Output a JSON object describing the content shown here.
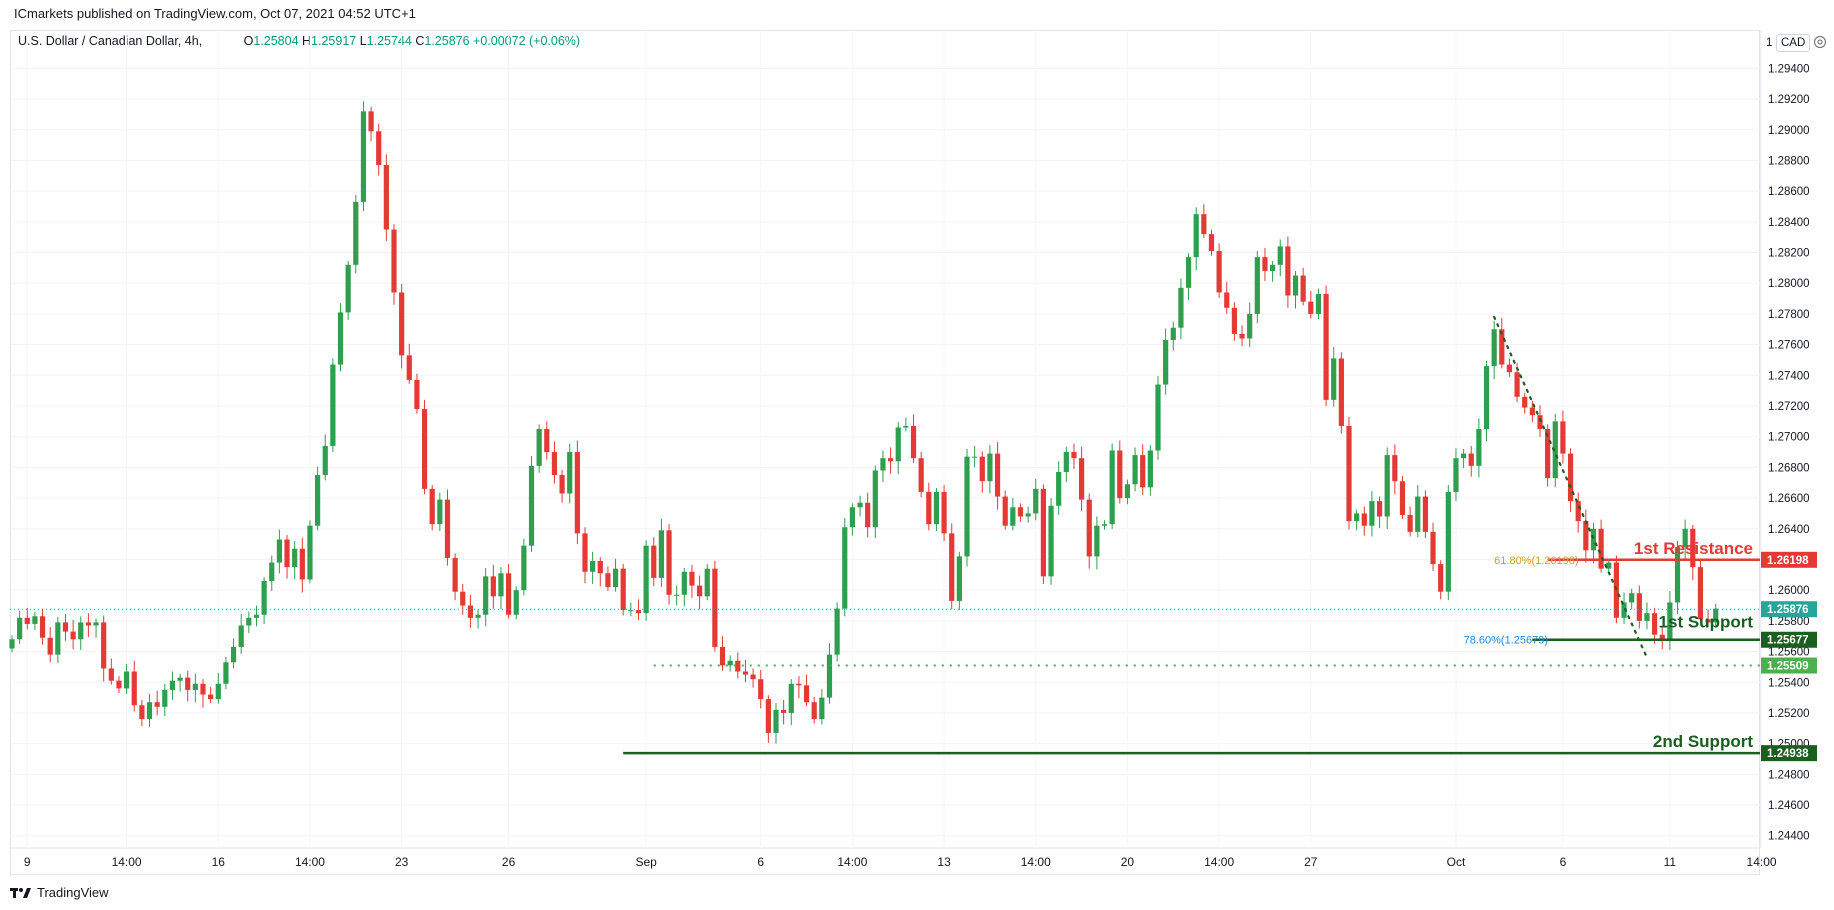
{
  "header": {
    "publisher": "ICmarkets published on TradingView.com, Oct 07, 2021 04:52 UTC+1"
  },
  "legend": {
    "symbol": "U.S. Dollar / Canadian Dollar, 4h,",
    "o_key": "O",
    "o": "1.25804",
    "h_key": "H",
    "h": "1.25917",
    "l_key": "L",
    "l": "1.25744",
    "c_key": "C",
    "c": "1.25876",
    "change": "+0.00072 (+0.06%)"
  },
  "currency": {
    "prefix": "1",
    "code": "CAD"
  },
  "footer": {
    "brand": "TradingView",
    "logo_icon": "tradingview-logo-icon"
  },
  "colors": {
    "up": "#26a69a",
    "up_candle": "#2e9e4f",
    "down": "#e53935",
    "resistance": "#e53935",
    "support": "#1b5e20",
    "support_light": "#4caf50",
    "fib_label": "#1e88e5",
    "fib_label_gold": "#c9a227"
  },
  "chart_data": {
    "type": "candlestick",
    "timeframe": "4h",
    "ylim": [
      1.2432,
      1.2965
    ],
    "y_ticks": [
      "1.29400",
      "1.29200",
      "1.29000",
      "1.28800",
      "1.28600",
      "1.28400",
      "1.28200",
      "1.28000",
      "1.27800",
      "1.27600",
      "1.27400",
      "1.27200",
      "1.27000",
      "1.26800",
      "1.26600",
      "1.26400",
      "1.26200",
      "1.26000",
      "1.25800",
      "1.25600",
      "1.25400",
      "1.25200",
      "1.25000",
      "1.24800",
      "1.24600",
      "1.24400"
    ],
    "x_ticks": [
      {
        "label": "9",
        "i": 2
      },
      {
        "label": "14:00",
        "i": 15
      },
      {
        "label": "16",
        "i": 27
      },
      {
        "label": "14:00",
        "i": 39
      },
      {
        "label": "23",
        "i": 51
      },
      {
        "label": "26",
        "i": 65
      },
      {
        "label": "Sep",
        "i": 83
      },
      {
        "label": "6",
        "i": 98
      },
      {
        "label": "14:00",
        "i": 110
      },
      {
        "label": "13",
        "i": 122
      },
      {
        "label": "14:00",
        "i": 134
      },
      {
        "label": "20",
        "i": 146
      },
      {
        "label": "14:00",
        "i": 158
      },
      {
        "label": "27",
        "i": 170
      },
      {
        "label": "Oct",
        "i": 189
      },
      {
        "label": "6",
        "i": 203
      },
      {
        "label": "11",
        "i": 217
      },
      {
        "label": "14:00",
        "i": 229
      }
    ],
    "closes": [
      1.2568,
      1.2582,
      1.2578,
      1.2583,
      1.2569,
      1.2558,
      1.2579,
      1.2573,
      1.2568,
      1.2579,
      1.2577,
      1.2579,
      1.2549,
      1.2541,
      1.2536,
      1.2547,
      1.2525,
      1.2516,
      1.2527,
      1.2524,
      1.2535,
      1.2541,
      1.2543,
      1.2535,
      1.2539,
      1.2532,
      1.2529,
      1.2539,
      1.2553,
      1.2563,
      1.2577,
      1.2582,
      1.2584,
      1.2606,
      1.2618,
      1.2633,
      1.2615,
      1.2627,
      1.2607,
      1.2642,
      1.2675,
      1.2694,
      1.2747,
      1.2781,
      1.2812,
      1.2853,
      1.2912,
      1.2899,
      1.2877,
      1.2835,
      1.2794,
      1.2753,
      1.2737,
      1.2718,
      1.2666,
      1.2643,
      1.2659,
      1.2621,
      1.2599,
      1.259,
      1.2582,
      1.2584,
      1.2609,
      1.2596,
      1.2611,
      1.2584,
      1.26,
      1.2629,
      1.2681,
      1.2705,
      1.269,
      1.2675,
      1.2663,
      1.269,
      1.2637,
      1.2612,
      1.2619,
      1.2611,
      1.2602,
      1.2614,
      1.2587,
      1.2587,
      1.2585,
      1.2629,
      1.2608,
      1.2639,
      1.2597,
      1.2597,
      1.2612,
      1.2603,
      1.2596,
      1.2614,
      1.2563,
      1.2551,
      1.2554,
      1.2547,
      1.2545,
      1.2542,
      1.2529,
      1.2507,
      1.2522,
      1.252,
      1.2539,
      1.2538,
      1.2527,
      1.2516,
      1.253,
      1.2558,
      1.2588,
      1.2641,
      1.2654,
      1.2657,
      1.2641,
      1.2678,
      1.2686,
      1.2684,
      1.2706,
      1.2707,
      1.2686,
      1.2664,
      1.2643,
      1.2664,
      1.2637,
      1.2593,
      1.2622,
      1.2687,
      1.2687,
      1.2671,
      1.2689,
      1.2661,
      1.2642,
      1.2654,
      1.2648,
      1.265,
      1.2666,
      1.2609,
      1.2655,
      1.2677,
      1.269,
      1.2686,
      1.2659,
      1.2622,
      1.2642,
      1.2643,
      1.2691,
      1.266,
      1.2669,
      1.2688,
      1.2667,
      1.2691,
      1.2734,
      1.2763,
      1.2771,
      1.2797,
      1.2817,
      1.2845,
      1.2832,
      1.2821,
      1.2794,
      1.2784,
      1.2767,
      1.2764,
      1.278,
      1.2817,
      1.2808,
      1.2812,
      1.2824,
      1.2792,
      1.2805,
      1.2788,
      1.278,
      1.2793,
      1.2724,
      1.2751,
      1.2707,
      1.2645,
      1.265,
      1.2642,
      1.2658,
      1.2648,
      1.2688,
      1.2671,
      1.2649,
      1.2638,
      1.2661,
      1.2638,
      1.2617,
      1.2599,
      1.2664,
      1.2686,
      1.2689,
      1.2681,
      1.2705,
      1.2746,
      1.277,
      1.2747,
      1.2742,
      1.2726,
      1.2719,
      1.2714,
      1.2705,
      1.2673,
      1.271,
      1.2689,
      1.2658,
      1.2645,
      1.2626,
      1.264,
      1.2614,
      1.2618,
      1.2582,
      1.2592,
      1.2598,
      1.258,
      1.2585,
      1.2571,
      1.2568,
      1.2592,
      1.2628,
      1.264,
      1.2615,
      1.2581,
      1.2579,
      1.2588
    ],
    "levels": [
      {
        "name": "1st Resistance",
        "price": "1.26198",
        "value": 1.26198
      },
      {
        "name": "1st Support",
        "price": "1.25677",
        "value": 1.25677,
        "fib": "78.60%(1.25679)"
      },
      {
        "name": "",
        "price": "1.25876",
        "value": 1.25876,
        "current": true
      },
      {
        "name": "",
        "price": "1.25509",
        "value": 1.25509
      },
      {
        "name": "2nd Support",
        "price": "1.24938",
        "value": 1.24938
      }
    ],
    "fib_resistance_label": "61.80%(1.26198)"
  }
}
